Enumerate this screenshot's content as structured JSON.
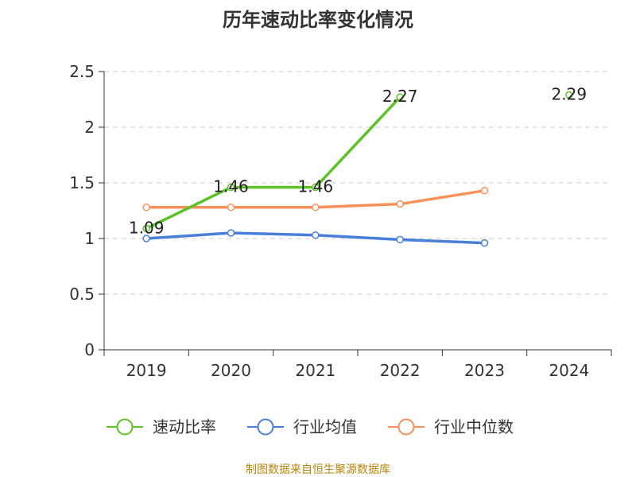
{
  "chart_data": {
    "type": "line",
    "title": "历年速动比率变化情况",
    "categories": [
      "2019",
      "2020",
      "2021",
      "2022",
      "2023",
      "2024"
    ],
    "ylim": [
      0,
      2.5
    ],
    "yticks": [
      "0",
      "0.5",
      "1",
      "1.5",
      "2",
      "2.5"
    ],
    "grid": true,
    "legend_position": "bottom",
    "series": [
      {
        "name": "速动比率",
        "color": "#5cc228",
        "values": [
          1.09,
          1.46,
          1.46,
          2.27,
          null,
          2.29
        ],
        "labels": [
          "1.09",
          "1.46",
          "1.46",
          "2.27",
          "",
          "2.29"
        ]
      },
      {
        "name": "行业均值",
        "color": "#4a7fd9",
        "values": [
          1.0,
          1.05,
          1.03,
          0.99,
          0.96,
          null
        ]
      },
      {
        "name": "行业中位数",
        "color": "#f7915a",
        "values": [
          1.28,
          1.28,
          1.28,
          1.31,
          1.43,
          null
        ]
      }
    ],
    "source": "制图数据来自恒生聚源数据库"
  }
}
